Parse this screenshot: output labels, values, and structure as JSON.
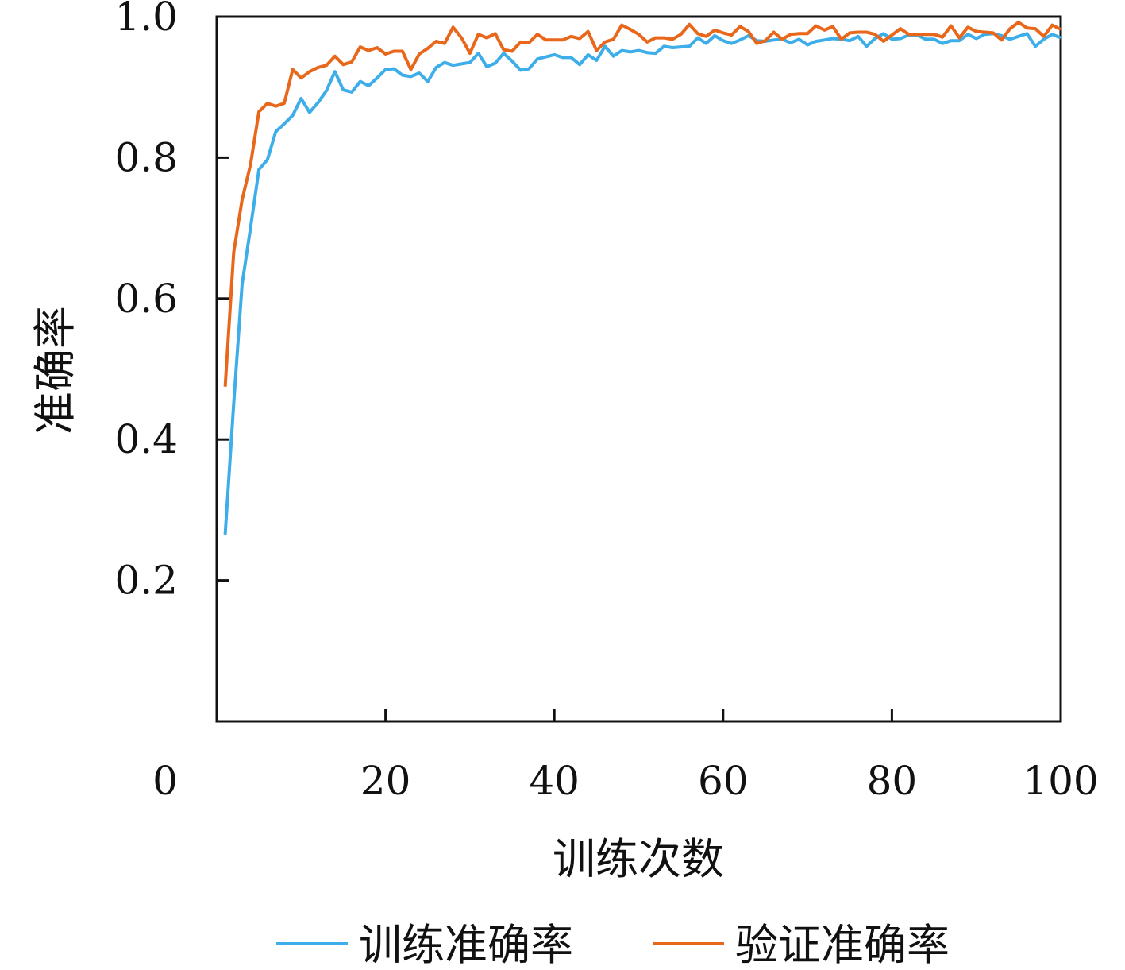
{
  "chart_data": {
    "type": "line",
    "xlabel": "训练次数",
    "ylabel": "准确率",
    "xlim": [
      0,
      100
    ],
    "ylim": [
      0,
      1.0
    ],
    "xticks": [
      0,
      20,
      40,
      60,
      80,
      100
    ],
    "yticks": [
      0.2,
      0.4,
      0.6,
      0.8,
      1.0
    ],
    "xtick_labels": [
      "0",
      "20",
      "40",
      "60",
      "80",
      "100"
    ],
    "ytick_labels": [
      "0.2",
      "0.4",
      "0.6",
      "0.8",
      "1.0"
    ],
    "grid": false,
    "legend": "bottom",
    "series": [
      {
        "name": "训练准确率",
        "color": "#3daee9",
        "x": [
          1,
          2,
          3,
          4,
          5,
          6,
          7,
          8,
          9,
          10,
          11,
          12,
          13,
          14,
          15,
          16,
          17,
          18,
          19,
          20,
          21,
          22,
          23,
          24,
          25,
          26,
          27,
          28,
          29,
          30,
          31,
          32,
          33,
          34,
          35,
          36,
          37,
          38,
          39,
          40,
          41,
          42,
          43,
          44,
          45,
          46,
          47,
          48,
          49,
          50,
          51,
          52,
          53,
          54,
          55,
          56,
          57,
          58,
          59,
          60,
          61,
          62,
          63,
          64,
          65,
          66,
          67,
          68,
          69,
          70,
          71,
          72,
          73,
          74,
          75,
          76,
          77,
          78,
          79,
          80,
          81,
          82,
          83,
          84,
          85,
          86,
          87,
          88,
          89,
          90,
          91,
          92,
          93,
          94,
          95,
          96,
          97,
          98,
          99,
          100
        ],
        "values": [
          0.265,
          0.45,
          0.62,
          0.7,
          0.783,
          0.797,
          0.837,
          0.848,
          0.86,
          0.884,
          0.864,
          0.878,
          0.895,
          0.922,
          0.896,
          0.893,
          0.908,
          0.902,
          0.913,
          0.925,
          0.926,
          0.917,
          0.915,
          0.92,
          0.908,
          0.928,
          0.935,
          0.931,
          0.933,
          0.935,
          0.948,
          0.929,
          0.934,
          0.948,
          0.937,
          0.924,
          0.926,
          0.94,
          0.943,
          0.946,
          0.942,
          0.942,
          0.932,
          0.946,
          0.938,
          0.958,
          0.944,
          0.952,
          0.95,
          0.952,
          0.949,
          0.948,
          0.958,
          0.956,
          0.957,
          0.958,
          0.97,
          0.962,
          0.973,
          0.966,
          0.962,
          0.967,
          0.973,
          0.966,
          0.965,
          0.967,
          0.968,
          0.963,
          0.968,
          0.96,
          0.965,
          0.967,
          0.969,
          0.968,
          0.966,
          0.972,
          0.958,
          0.969,
          0.976,
          0.968,
          0.969,
          0.974,
          0.974,
          0.968,
          0.968,
          0.962,
          0.966,
          0.966,
          0.975,
          0.969,
          0.975,
          0.976,
          0.973,
          0.968,
          0.972,
          0.976,
          0.958,
          0.968,
          0.975,
          0.97
        ]
      },
      {
        "name": "验证准确率",
        "color": "#e8671b",
        "x": [
          1,
          2,
          3,
          4,
          5,
          6,
          7,
          8,
          9,
          10,
          11,
          12,
          13,
          14,
          15,
          16,
          17,
          18,
          19,
          20,
          21,
          22,
          23,
          24,
          25,
          26,
          27,
          28,
          29,
          30,
          31,
          32,
          33,
          34,
          35,
          36,
          37,
          38,
          39,
          40,
          41,
          42,
          43,
          44,
          45,
          46,
          47,
          48,
          49,
          50,
          51,
          52,
          53,
          54,
          55,
          56,
          57,
          58,
          59,
          60,
          61,
          62,
          63,
          64,
          65,
          66,
          67,
          68,
          69,
          70,
          71,
          72,
          73,
          74,
          75,
          76,
          77,
          78,
          79,
          80,
          81,
          82,
          83,
          84,
          85,
          86,
          87,
          88,
          89,
          90,
          91,
          92,
          93,
          94,
          95,
          96,
          97,
          98,
          99,
          100
        ],
        "values": [
          0.475,
          0.665,
          0.74,
          0.79,
          0.865,
          0.877,
          0.873,
          0.877,
          0.925,
          0.913,
          0.922,
          0.928,
          0.931,
          0.944,
          0.932,
          0.936,
          0.957,
          0.952,
          0.956,
          0.947,
          0.951,
          0.951,
          0.925,
          0.947,
          0.955,
          0.965,
          0.962,
          0.985,
          0.97,
          0.948,
          0.975,
          0.97,
          0.976,
          0.953,
          0.951,
          0.964,
          0.963,
          0.975,
          0.967,
          0.967,
          0.967,
          0.972,
          0.969,
          0.979,
          0.952,
          0.964,
          0.968,
          0.988,
          0.982,
          0.975,
          0.964,
          0.97,
          0.97,
          0.968,
          0.975,
          0.989,
          0.976,
          0.972,
          0.981,
          0.977,
          0.974,
          0.986,
          0.979,
          0.962,
          0.966,
          0.978,
          0.968,
          0.975,
          0.976,
          0.976,
          0.987,
          0.981,
          0.986,
          0.968,
          0.977,
          0.978,
          0.978,
          0.975,
          0.965,
          0.974,
          0.983,
          0.975,
          0.975,
          0.975,
          0.975,
          0.971,
          0.987,
          0.97,
          0.985,
          0.979,
          0.978,
          0.977,
          0.967,
          0.983,
          0.992,
          0.984,
          0.983,
          0.972,
          0.988,
          0.982
        ]
      }
    ]
  }
}
